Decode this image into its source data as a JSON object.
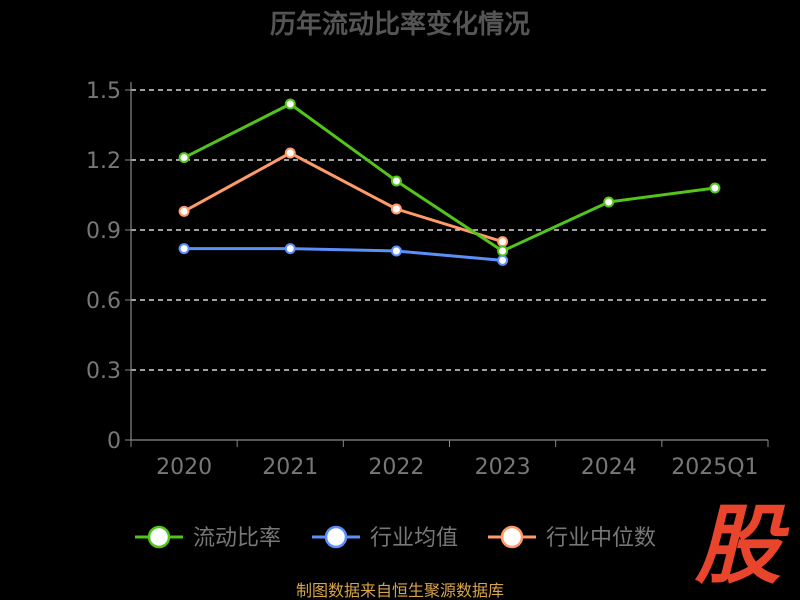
{
  "chart_data": {
    "type": "line",
    "title": "历年流动比率变化情况",
    "categories": [
      "2020",
      "2021",
      "2022",
      "2023",
      "2024",
      "2025Q1"
    ],
    "ylim": [
      0,
      1.5
    ],
    "yticks": [
      "0",
      "0.3",
      "0.6",
      "0.9",
      "1.2",
      "1.5"
    ],
    "grid": true,
    "legend_position": "bottom",
    "series": [
      {
        "name": "流动比率",
        "color": "#52c41a",
        "values": [
          1.21,
          1.44,
          1.11,
          0.81,
          1.02,
          1.08
        ]
      },
      {
        "name": "行业均值",
        "color": "#5b8ff9",
        "values": [
          0.82,
          0.82,
          0.81,
          0.77,
          null,
          null
        ]
      },
      {
        "name": "行业中位数",
        "color": "#ff9a6a",
        "values": [
          0.98,
          1.23,
          0.99,
          0.85,
          null,
          null
        ]
      }
    ]
  },
  "footer": {
    "source": "制图数据来自恒生聚源数据库"
  },
  "watermark": {
    "text": "股",
    "color": "#e8452c"
  },
  "colors": {
    "axis": "#888888",
    "grid": "#ffffff",
    "text": "#777777",
    "title": "#555555"
  }
}
